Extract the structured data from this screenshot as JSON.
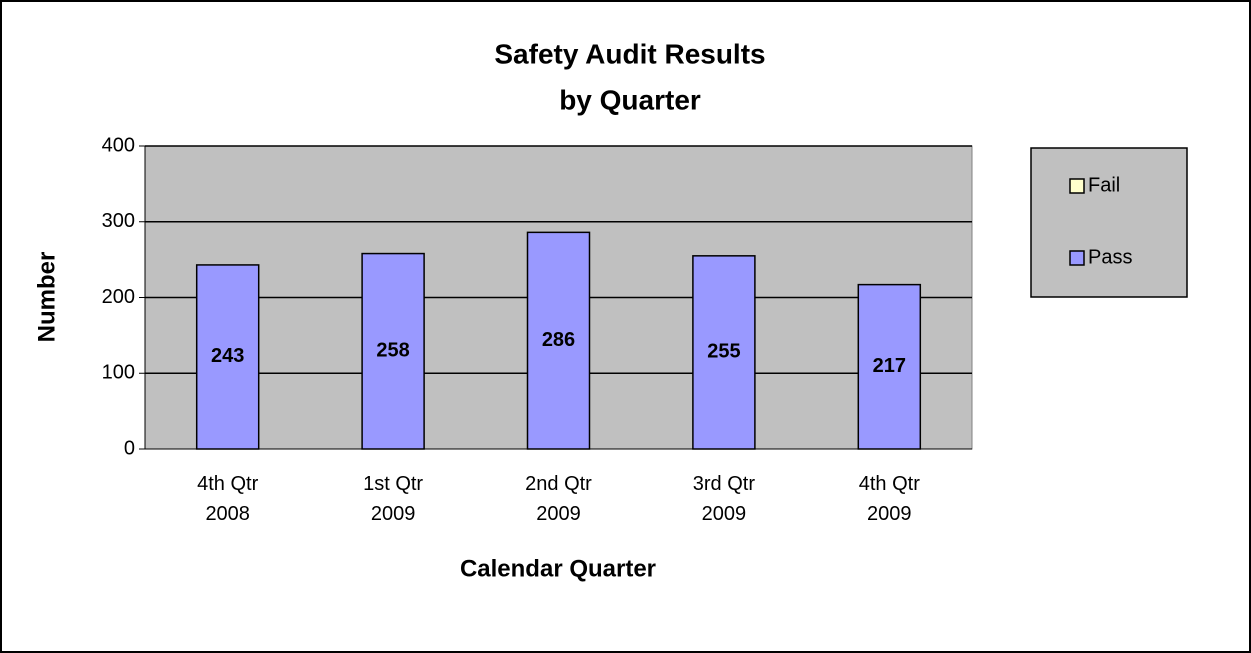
{
  "chart_data": {
    "type": "stacked_bar",
    "title": [
      "Safety Audit Results",
      "by Quarter"
    ],
    "x_label": "Calendar Quarter",
    "y_label": "Number",
    "categories": [
      "4th Qtr 2008",
      "1st Qtr 2009",
      "2nd Qtr 2009",
      "3rd Qtr 2009",
      "4th Qtr 2009"
    ],
    "series": [
      {
        "name": "Fail",
        "color": "#ffffcc",
        "values": [
          0,
          0,
          0,
          0,
          0
        ],
        "data_labels": false
      },
      {
        "name": "Pass",
        "color": "#9999ff",
        "values": [
          243,
          258,
          286,
          255,
          217
        ],
        "data_labels": true
      }
    ],
    "ylim": [
      0,
      400
    ],
    "yticks": [
      0,
      100,
      200,
      300,
      400
    ],
    "grid": true,
    "legend": "right",
    "plot_background": "#c0c0c0"
  }
}
